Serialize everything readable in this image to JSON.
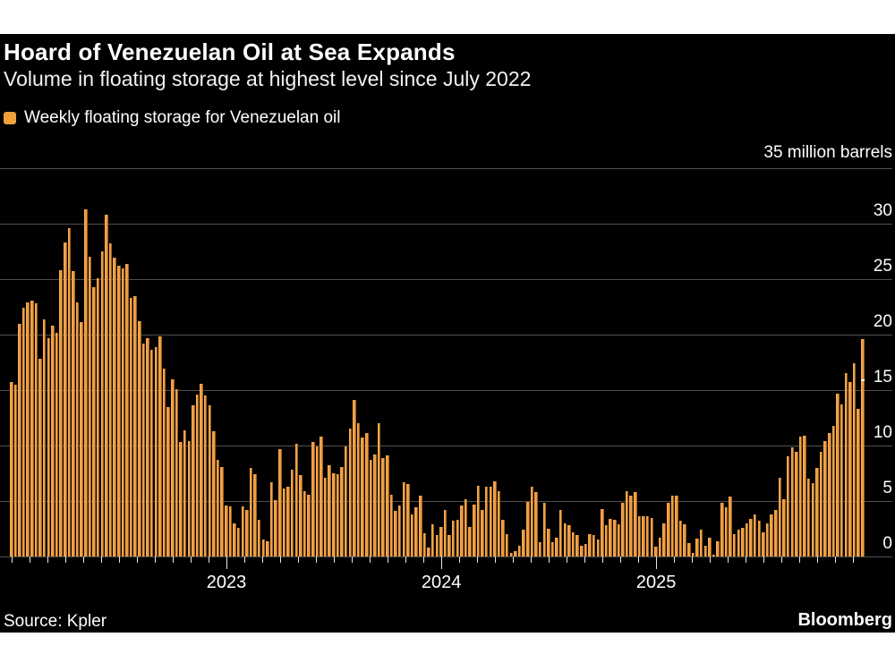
{
  "header": {
    "title": "Hoard of Venezuelan Oil at Sea Expands",
    "subtitle": "Volume in floating storage at highest level since July 2022"
  },
  "legend": {
    "label": "Weekly floating storage for Venezuelan oil",
    "swatch_color": "#F0A03C"
  },
  "footer": {
    "source": "Source: Kpler",
    "brand": "Bloomberg"
  },
  "chart_data": {
    "type": "bar",
    "title": "Hoard of Venezuelan Oil at Sea Expands",
    "subtitle": "Volume in floating storage at highest level since July 2022",
    "unit_label": "35 million barrels",
    "ylabel": "million barrels",
    "ylim": [
      0,
      35
    ],
    "y_ticks": [
      35,
      30,
      25,
      20,
      15,
      10,
      5,
      0
    ],
    "y_tick_labels_shown": [
      "30",
      "25",
      "20",
      "15",
      "10",
      "5",
      "0"
    ],
    "grid": true,
    "gridline_color": "#4F4F4F",
    "background_color": "#000000",
    "bar_color": "#EE9C41",
    "legend_position": "top-left",
    "x_frequency": "weekly",
    "x_start": "2022-01",
    "x_end": "2025-12",
    "x_year_labels": [
      "2023",
      "2024",
      "2025"
    ],
    "latest_value": 19.6,
    "series": [
      {
        "name": "Weekly floating storage for Venezuelan oil",
        "values": [
          15.7,
          15.5,
          21.0,
          22.4,
          22.9,
          23.1,
          22.8,
          17.8,
          21.4,
          19.7,
          20.8,
          20.2,
          25.8,
          28.3,
          29.6,
          25.7,
          22.9,
          21.1,
          31.3,
          27.0,
          24.3,
          25.1,
          27.5,
          30.8,
          28.2,
          26.9,
          26.2,
          26.0,
          26.4,
          23.3,
          23.5,
          21.2,
          19.2,
          19.7,
          18.6,
          18.9,
          19.8,
          16.9,
          13.5,
          16.0,
          15.1,
          10.3,
          11.4,
          10.4,
          13.6,
          14.6,
          15.6,
          14.5,
          13.6,
          11.3,
          8.7,
          8.1,
          4.6,
          4.5,
          3.0,
          2.6,
          4.5,
          4.2,
          8.0,
          7.4,
          3.3,
          1.5,
          1.4,
          6.7,
          5.1,
          9.7,
          6.1,
          6.3,
          7.8,
          10.2,
          7.3,
          5.9,
          5.6,
          10.3,
          9.9,
          10.8,
          7.1,
          8.2,
          7.5,
          7.4,
          8.1,
          9.9,
          11.5,
          14.1,
          12.0,
          10.7,
          11.1,
          8.7,
          9.2,
          12.0,
          8.9,
          9.1,
          5.6,
          4.1,
          4.6,
          6.7,
          6.5,
          3.8,
          4.4,
          5.5,
          2.1,
          0.8,
          2.9,
          1.9,
          2.7,
          4.2,
          1.9,
          3.2,
          3.3,
          4.6,
          5.2,
          2.7,
          4.7,
          6.4,
          4.2,
          6.3,
          6.3,
          6.8,
          5.9,
          3.3,
          2.0,
          0.3,
          0.5,
          1.0,
          2.4,
          4.9,
          6.3,
          5.8,
          1.3,
          4.8,
          2.5,
          1.3,
          1.7,
          4.2,
          3.0,
          2.8,
          2.2,
          1.9,
          1.0,
          1.1,
          2.0,
          1.9,
          1.5,
          4.3,
          2.8,
          3.4,
          3.3,
          2.9,
          4.8,
          5.9,
          5.5,
          5.8,
          3.6,
          3.6,
          3.6,
          3.5,
          0.9,
          1.7,
          3.0,
          4.8,
          5.5,
          5.5,
          3.2,
          2.9,
          1.2,
          0.3,
          1.6,
          2.4,
          1.0,
          1.7,
          0.2,
          1.4,
          4.8,
          4.4,
          5.4,
          2.0,
          2.4,
          2.6,
          3.0,
          3.4,
          3.8,
          3.2,
          2.2,
          3.0,
          3.8,
          4.2,
          7.1,
          5.2,
          9.0,
          9.8,
          9.4,
          10.8,
          10.9,
          7.0,
          6.6,
          8.0,
          9.4,
          10.4,
          11.1,
          11.8,
          14.7,
          13.7,
          16.5,
          15.7,
          17.4,
          13.3,
          19.6
        ]
      }
    ]
  }
}
